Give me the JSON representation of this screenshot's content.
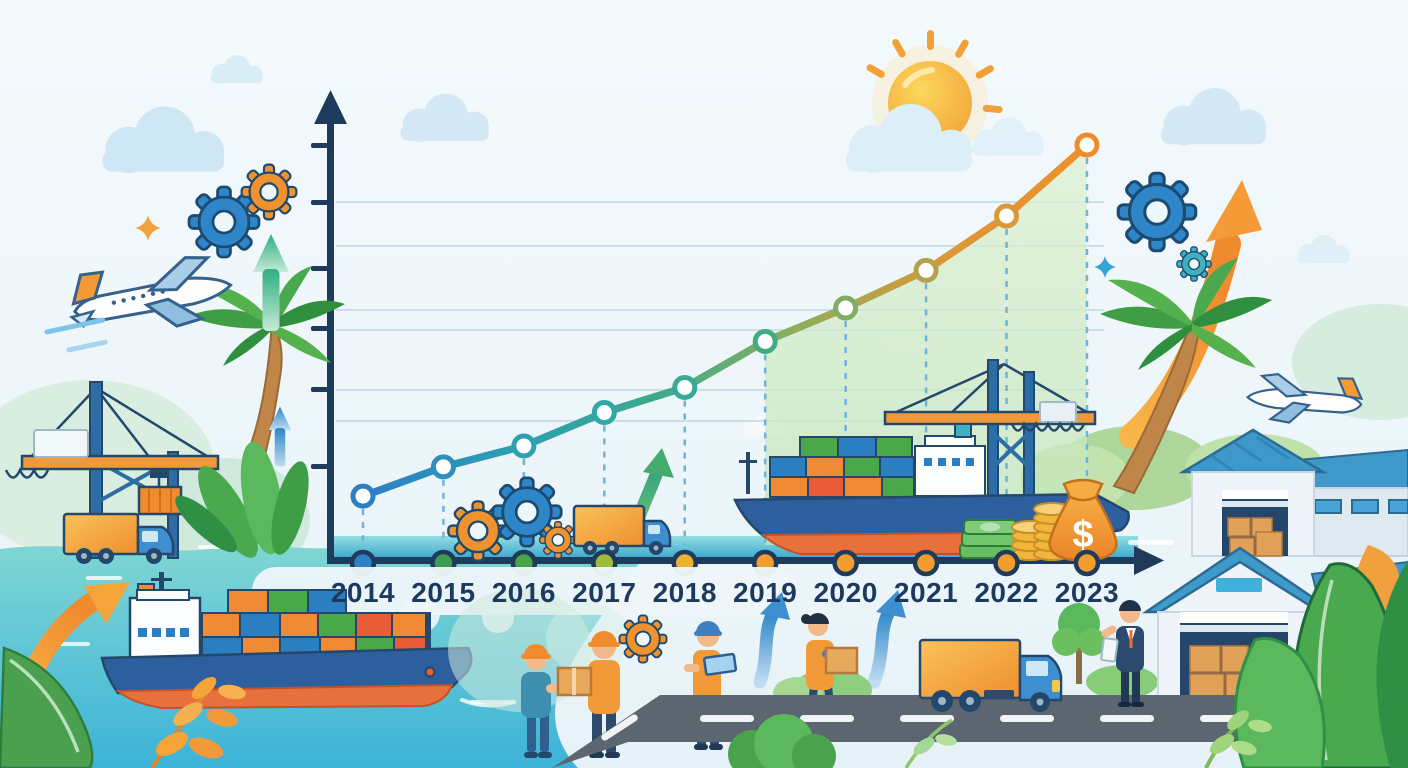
{
  "chart_data": {
    "type": "line",
    "title": "",
    "xlabel": "",
    "ylabel": "",
    "categories": [
      "2014",
      "2015",
      "2016",
      "2017",
      "2018",
      "2019",
      "2020",
      "2021",
      "2022",
      "2023"
    ],
    "values": [
      16,
      23,
      28,
      36,
      42,
      53,
      61,
      70,
      83,
      100
    ],
    "values_note": "No numeric y-axis labels are visible; values are estimated relative heights of the trend points (2023 = 100).",
    "ylim": [
      0,
      110
    ],
    "grid": true,
    "legend": false,
    "line_gradient": [
      "#2b7fc4",
      "#2b9fb4",
      "#3ba98e",
      "#8fae5c",
      "#d9983a",
      "#f0902c"
    ],
    "point_ring_colors": [
      "#2e7fc3",
      "#2e8fbe",
      "#2ea0b2",
      "#2fa8a6",
      "#38aa96",
      "#43ab83",
      "#7fae62",
      "#b5a24d",
      "#d9983a",
      "#f08d2a"
    ],
    "timeline_dot_colors": [
      "#2e7fc3",
      "#3d9c51",
      "#45a547",
      "#9cbc3b",
      "#eab231",
      "#f29d2e",
      "#f29d2e",
      "#f29d2e",
      "#f29d2e",
      "#f29d2e"
    ],
    "area_fill": {
      "from_index": 5,
      "color": "#cdeac1"
    }
  },
  "money": {
    "dollar_sign": "$"
  },
  "palette": {
    "axis_navy": "#1e3b5c",
    "year_text": "#1d3a5e",
    "sky_top": "#f3fafc",
    "sky_bottom": "#e8f3f8",
    "water_teal": "#4fbfd0",
    "timeline_strip_top": "#8fdce0",
    "timeline_strip_bottom": "#3aa6cc",
    "sun_core": "#fcd75c",
    "sun_edge": "#f2a138",
    "accent_orange": "#f0922e",
    "accent_blue_gear": "#2e86c8",
    "accent_green": "#4aa84f",
    "roof_blue": "#3e98c8",
    "road_gray": "#5b6670",
    "container_colors": [
      "#f08a35",
      "#2b7fc1",
      "#4aa84a",
      "#e85c3a"
    ]
  },
  "icons": [
    "sun-icon",
    "cloud-icon",
    "gear-icon",
    "airplane-icon",
    "palm-tree-icon",
    "port-crane-icon",
    "container-ship-icon",
    "truck-icon",
    "up-arrow-icon",
    "money-bag-icon",
    "coin-stack-icon",
    "banknotes-icon",
    "warehouse-icon",
    "worker-icon",
    "businessman-icon",
    "sparkle-icon",
    "leaf-icon"
  ]
}
